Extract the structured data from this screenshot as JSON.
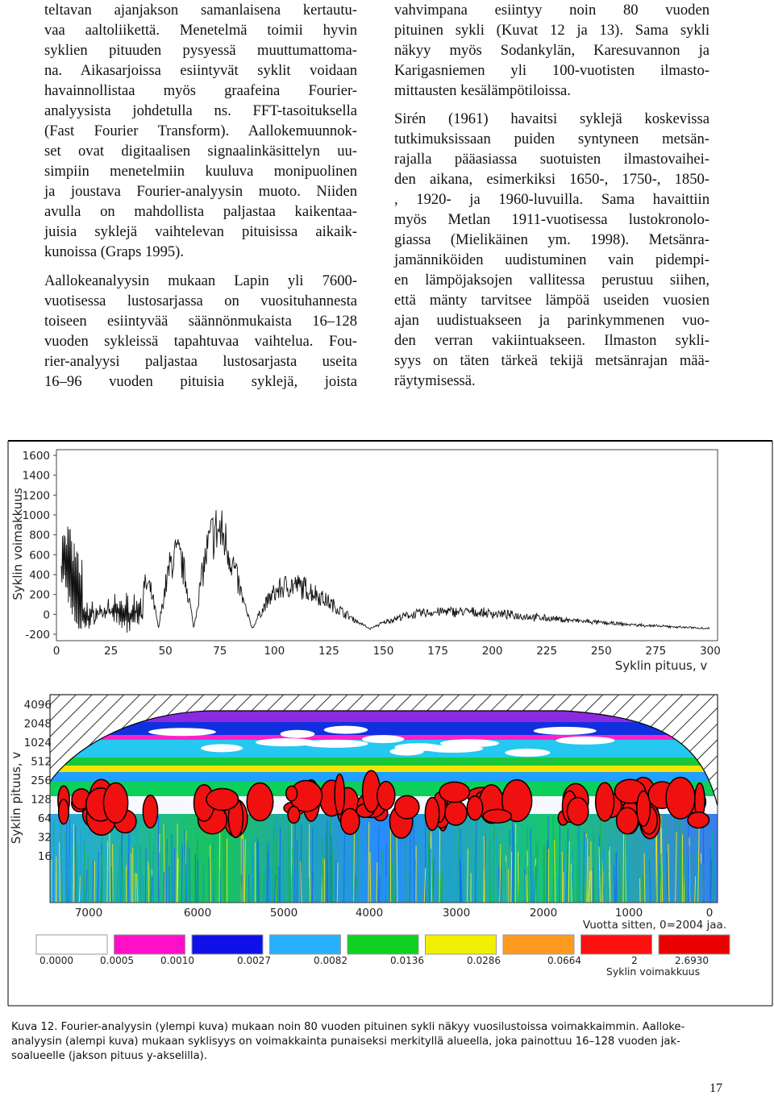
{
  "columns": [
    {
      "paragraphs": [
        [
          "teltavan ajanjakson samanlaisena kertautu-",
          "vaa aaltoliikettä. Menetelmä toimii hyvin",
          "syklien pituuden pysyessä muuttumattoma-",
          "na. Aikasarjoissa esiintyvät syklit voidaan",
          "havainnollistaa myös graafeina Fourier-",
          "analyysista johdetulla ns. FFT-tasoituksella",
          "(Fast Fourier Transform). Aallokemuunnok-",
          "set ovat digitaalisen signaalinkäsittelyn uu-",
          "simpiin menetelmiin kuuluva monipuolinen",
          "ja joustava Fourier-analyysin muoto. Niiden",
          "avulla on mahdollista paljastaa kaikentaa-",
          "juisia syklejä vaihtelevan pituisissa aikaik-",
          "kunoissa (Graps 1995)."
        ],
        [
          "Aallokeanalyysin mukaan Lapin yli 7600-",
          "vuotisessa lustosarjassa on vuosituhannesta",
          "toiseen esiintyvää säännönmukaista 16–128",
          "vuoden sykleissä tapahtuvaa vaihtelua. Fou-",
          "rier-analyysi paljastaa lustosarjasta useita",
          "16–96 vuoden pituisia syklejä, joista"
        ]
      ]
    },
    {
      "paragraphs": [
        [
          "vahvimpana esiintyy noin 80 vuoden",
          "pituinen sykli (Kuvat 12 ja 13). Sama sykli",
          "näkyy myös Sodankylän, Karesuvannon ja",
          "Karigasniemen yli 100-vuotisten ilmasto-",
          "mittausten kesälämpötiloissa."
        ],
        [
          "Sirén (1961) havaitsi syklejä koskevissa",
          "tutkimuksissaan puiden syntyneen metsän-",
          "rajalla pääasiassa suotuisten ilmastovaihei-",
          "den aikana, esimerkiksi 1650-, 1750-, 1850-",
          ", 1920- ja 1960-luvuilla. Sama havaittiin",
          "myös Metlan 1911-vuotisessa lustokronolo-",
          "giassa (Mielikäinen ym. 1998). Metsänra-",
          "jamänniköiden uudistuminen vain pidempi-",
          "en lämpöjaksojen vallitessa perustuu siihen,",
          "että mänty tarvitsee lämpöä useiden vuosien",
          "ajan uudistuakseen ja parinkymmenen vuo-",
          "den verran vakiintuakseen. Ilmaston sykli-",
          "syys on täten tärkeä tekijä metsänrajan mää-",
          "räytymisessä."
        ]
      ]
    }
  ],
  "figure": {
    "spectrum": {
      "y_label": "Syklin voimakkuus",
      "x_label": "Syklin pituus, v",
      "y_tick_labels": [
        "1600",
        "1400",
        "1200",
        "1000",
        "800",
        "600",
        "400",
        "200",
        "0",
        "-200"
      ],
      "x_tick_labels": [
        "0",
        "25",
        "50",
        "75",
        "100",
        "125",
        "150",
        "175",
        "200",
        "225",
        "250",
        "275",
        "300"
      ]
    },
    "wavelet": {
      "y_label": "Syklin pituus, v",
      "x_label": "Vuotta sitten, 0=2004 jaa.",
      "y_tick_labels": [
        "4096",
        "2048",
        "1024",
        "512",
        "256",
        "128",
        "64",
        "32",
        "16"
      ],
      "x_tick_labels": [
        "7000",
        "6000",
        "5000",
        "4000",
        "3000",
        "2000",
        "1000",
        "0"
      ]
    },
    "scale": {
      "label": "Syklin voimakkuus",
      "tick_labels": [
        "0.0000",
        "0.0005",
        "0.0010",
        "0.0027",
        "0.0082",
        "0.0136",
        "0.0286",
        "0.0664",
        "2",
        "2.6930"
      ]
    },
    "caption": [
      "Kuva 12. Fourier-analyysin (ylempi kuva) mukaan noin 80 vuoden pituinen sykli näkyy vuosilustoissa voimakkaimmin. Aalloke-",
      "analyysin (alempi kuva) mukaan syklisyys on voimakkainta punaiseksi merkityllä alueella, joka painottuu 16–128 vuoden jak-",
      "soalueelle (jakson pituus y-akselilla)."
    ]
  },
  "page_number": "17"
}
